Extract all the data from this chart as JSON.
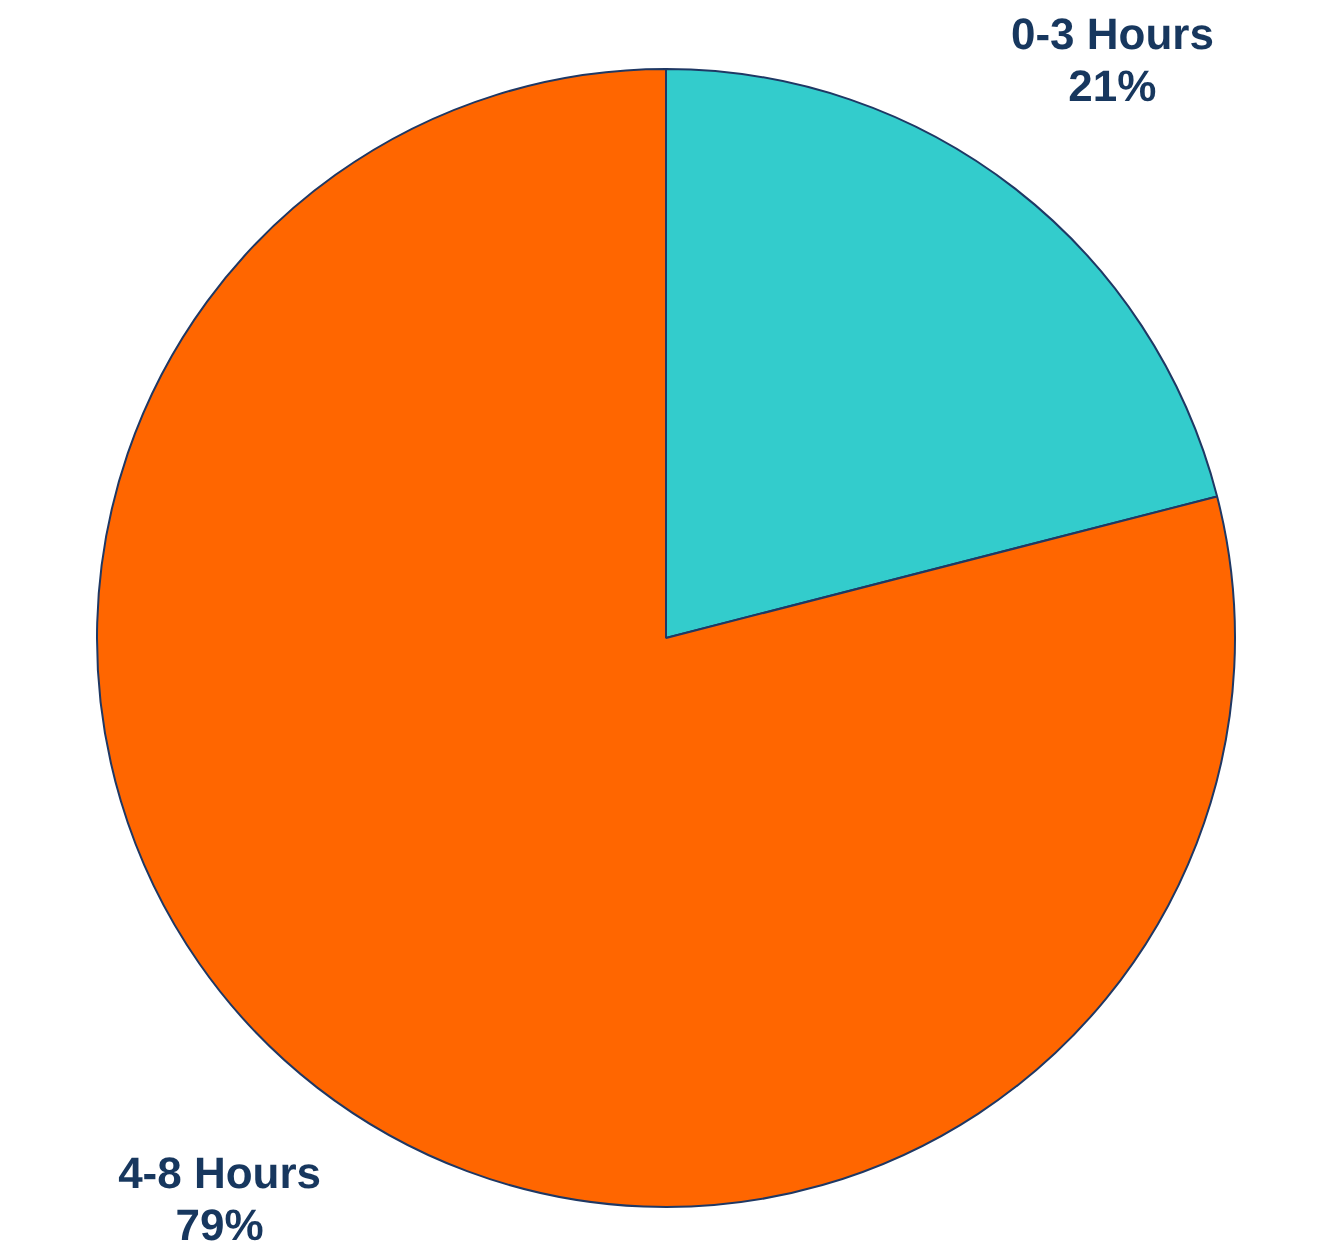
{
  "chart_data": {
    "type": "pie",
    "categories": [
      "0-3 Hours",
      "4-8 Hours"
    ],
    "values": [
      21,
      79
    ],
    "colors": [
      "#33cccc",
      "#ff6600"
    ],
    "value_labels": [
      "21%",
      "79%"
    ],
    "legend": false
  }
}
